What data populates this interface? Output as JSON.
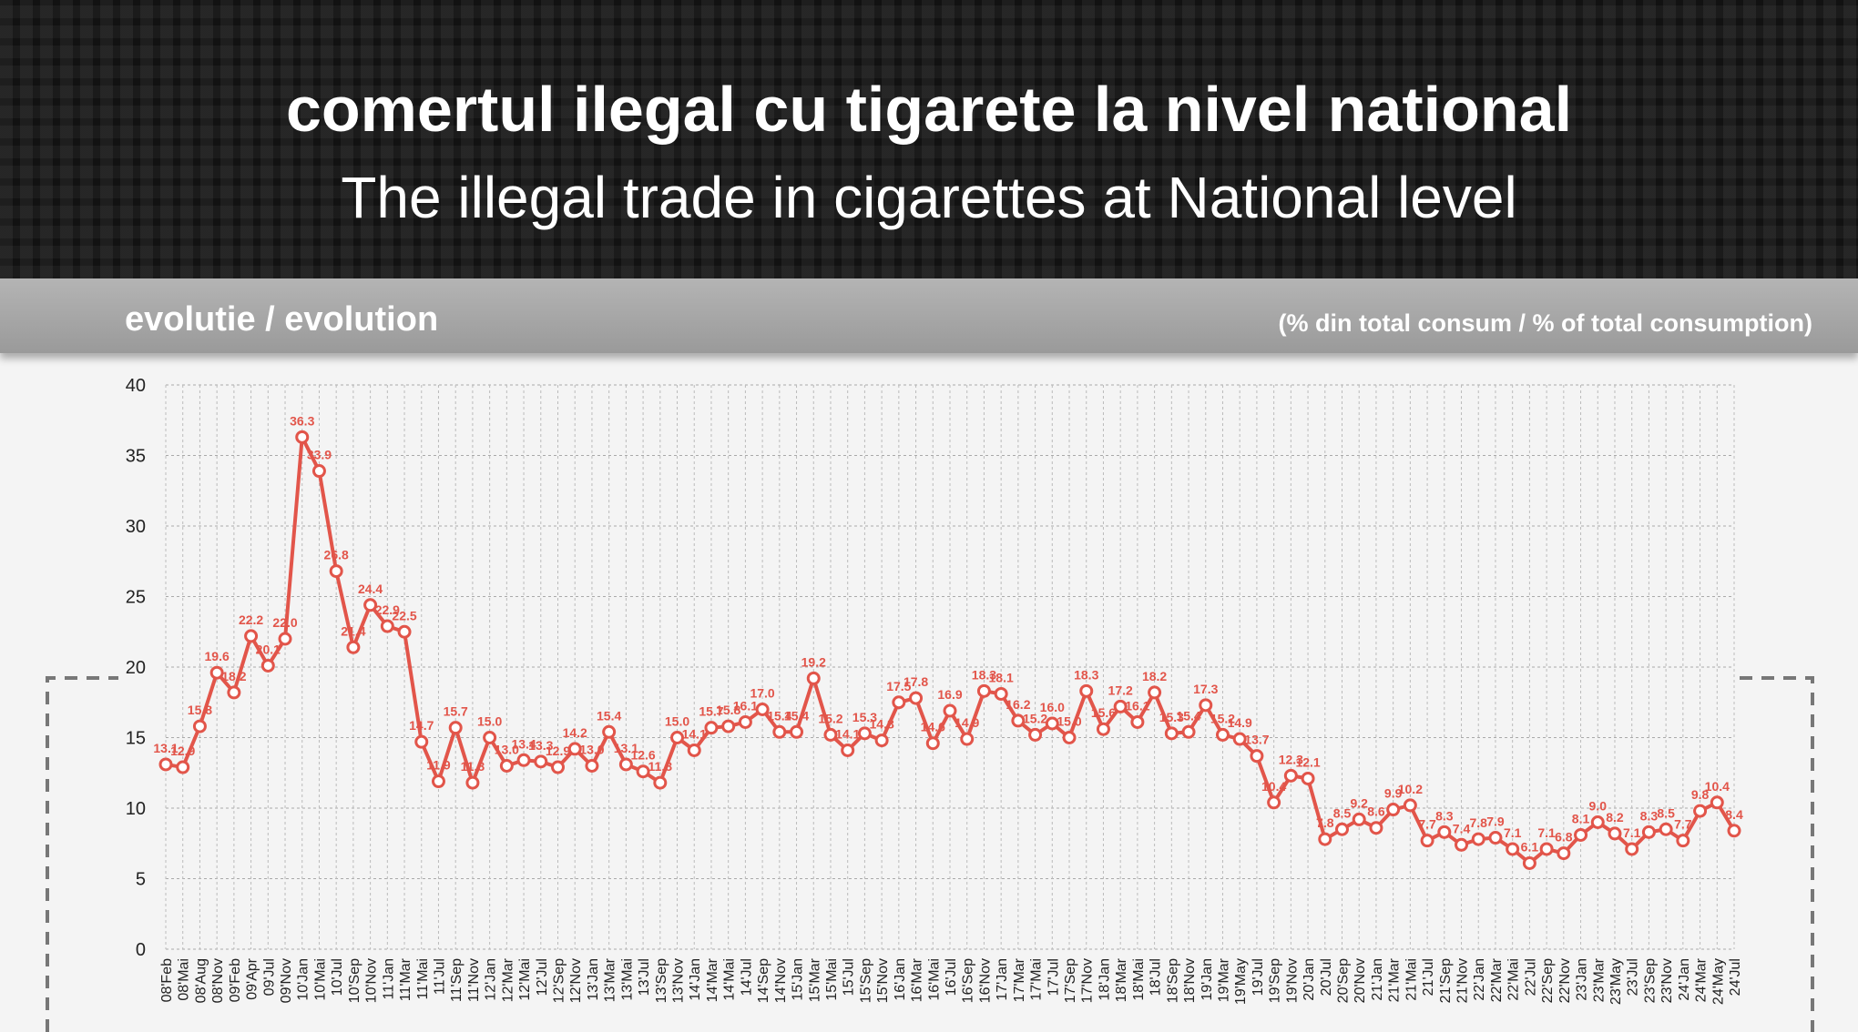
{
  "header": {
    "title": "comertul ilegal cu tigarete la nivel national",
    "subtitle": "The illegal trade in cigarettes at National level"
  },
  "section": {
    "title": "evolutie / evolution",
    "unit": "(% din total consum / % of total consumption)"
  },
  "chart_data": {
    "type": "line",
    "grid": true,
    "categories": [
      "08'Feb",
      "08'Mai",
      "08'Aug",
      "08'Nov",
      "09'Feb",
      "09'Apr",
      "09'Jul",
      "09'Nov",
      "10'Jan",
      "10'Mai",
      "10'Jul",
      "10'Sep",
      "10'Nov",
      "11'Jan",
      "11'Mar",
      "11'Mai",
      "11'Jul",
      "11'Sep",
      "11'Nov",
      "12'Jan",
      "12'Mar",
      "12'Mai",
      "12'Jul",
      "12'Sep",
      "12'Nov",
      "13'Jan",
      "13'Mar",
      "13'Mai",
      "13'Jul",
      "13'Sep",
      "13'Nov",
      "14'Jan",
      "14'Mar",
      "14'Mai",
      "14'Jul",
      "14'Sep",
      "14'Nov",
      "15'Jan",
      "15'Mar",
      "15'Mai",
      "15'Jul",
      "15'Sep",
      "15'Nov",
      "16'Jan",
      "16'Mar",
      "16'Mai",
      "16'Jul",
      "16'Sep",
      "16'Nov",
      "17'Jan",
      "17'Mar",
      "17'Mai",
      "17'Jul",
      "17'Sep",
      "17'Nov",
      "18'Jan",
      "18'Mar",
      "18'Mai",
      "18'Jul",
      "18'Sep",
      "18'Nov",
      "19'Jan",
      "19'Mar",
      "19'May",
      "19'Jul",
      "19'Sep",
      "19'Nov",
      "20'Jan",
      "20'Jul",
      "20'Sep",
      "20'Nov",
      "21'Jan",
      "21'Mar",
      "21'Mai",
      "21'Jul",
      "21'Sep",
      "21'Nov",
      "22'Jan",
      "22'Mar",
      "22'Mai",
      "22'Jul",
      "22'Sep",
      "22'Nov",
      "23'Jan",
      "23'Mar",
      "23'May",
      "23'Jul",
      "23'Sep",
      "23'Nov",
      "24'Jan",
      "24'Mar",
      "24'May",
      "24'Jul"
    ],
    "series": [
      {
        "name": "illegal trade",
        "color": "#e2554a",
        "values": [
          13.1,
          12.9,
          15.8,
          19.6,
          18.2,
          22.2,
          20.1,
          22.0,
          36.3,
          33.9,
          26.8,
          21.4,
          24.4,
          22.9,
          22.5,
          14.7,
          11.9,
          15.7,
          11.8,
          15.0,
          13.0,
          13.4,
          13.3,
          12.9,
          14.2,
          13.0,
          15.4,
          13.1,
          12.6,
          11.8,
          15.0,
          14.1,
          15.7,
          15.8,
          16.1,
          17.0,
          15.4,
          15.4,
          19.2,
          15.2,
          14.1,
          15.3,
          14.8,
          17.5,
          17.8,
          14.6,
          16.9,
          14.9,
          18.3,
          18.1,
          16.2,
          15.2,
          16.0,
          15.0,
          18.3,
          15.6,
          17.2,
          16.1,
          18.2,
          15.3,
          15.4,
          17.3,
          15.2,
          14.9,
          13.7,
          10.4,
          12.3,
          12.1,
          7.8,
          8.5,
          9.2,
          8.6,
          9.9,
          10.2,
          7.7,
          8.3,
          7.4,
          7.8,
          7.9,
          7.1,
          6.1,
          7.1,
          6.8,
          8.1,
          9.0,
          8.2,
          7.1,
          8.3,
          8.5,
          7.7,
          9.8,
          10.4,
          8.4
        ],
        "value_labels": [
          "13.1",
          "12.9",
          "15.8",
          "19.6",
          "18.2",
          "22.2",
          "20.1",
          "22.0",
          "36.3",
          "33.9",
          "26.8",
          "21.4",
          "24.4",
          "22.9",
          "22.5",
          "14.7",
          "11.9",
          "15.7",
          "11.8",
          "15.0",
          "13.0",
          "13.4",
          "13.3",
          "12.9",
          "14.2",
          "13.0",
          "15.4",
          "13.1",
          "12.6",
          "11.8",
          "15.0",
          "14.1",
          "15.7",
          "15.8",
          "16.1",
          "17.0",
          "15.4",
          "15.4",
          "19.2",
          "15.2",
          "14.1",
          "15.3",
          "14.8",
          "17.5",
          "17.8",
          "14.6",
          "16.9",
          "14.9",
          "18.3",
          "18.1",
          "16.2",
          "15.2",
          "16.0",
          "15.0",
          "18.3",
          "15.6",
          "17.2",
          "16.1",
          "18.2",
          "15.3",
          "15.4",
          "17.3",
          "15.2",
          "14.9",
          "13.7",
          "10.4",
          "12.3",
          "12.1",
          "7.8",
          "8.5",
          "9.2",
          "8.6",
          "9.9",
          "10.2",
          "7.7",
          "8.3",
          "7.4",
          "7.8",
          "7.9",
          "7.1",
          "6.1",
          "7.1",
          "6.8",
          "8.1",
          "9.0",
          "8.2",
          "7.1",
          "8.3",
          "8.5",
          "7.7",
          "9.8",
          "10.4",
          "8.4"
        ]
      }
    ],
    "ylim": [
      0,
      40
    ],
    "yticks": [
      0,
      5,
      10,
      15,
      20,
      25,
      30,
      35,
      40
    ]
  }
}
